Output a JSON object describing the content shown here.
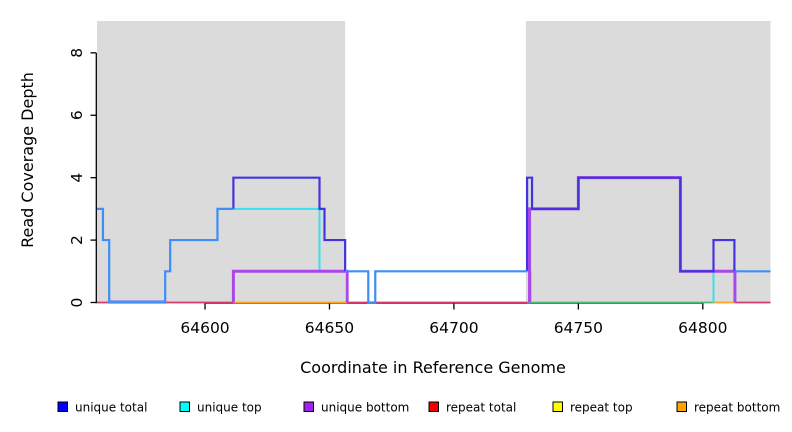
{
  "background": "#ffffff",
  "chart_data": {
    "type": "step-line",
    "title": "",
    "xlabel": "Coordinate in Reference Genome",
    "ylabel": "Read Coverage Depth",
    "xlim": [
      64556.6,
      64827.2
    ],
    "ylim": [
      0,
      9.02
    ],
    "xticks": [
      64600,
      64650,
      64700,
      64750,
      64800
    ],
    "yticks": [
      0,
      2,
      4,
      6,
      8
    ],
    "grid": false,
    "legend_position": "bottom",
    "shade_color": "#dbdbdb",
    "shaded_regions": [
      {
        "name": "left-covered-region",
        "from": 64556.6,
        "to": 64656.3
      },
      {
        "name": "right-covered-region",
        "from": 64728.9,
        "to": 64827.2
      }
    ],
    "baseline_y": 0,
    "baseline_segments": [
      {
        "from": 64556.6,
        "to": 64611.4,
        "color": "#d23b68",
        "dy": 0
      },
      {
        "from": 64561.5,
        "to": 64584.0,
        "color": "#8d8dec",
        "dy": -1.4
      },
      {
        "from": 64611.4,
        "to": 64657.1,
        "color": "#ffa424",
        "dy": 0
      },
      {
        "from": 64657.1,
        "to": 64729.4,
        "color": "#d23b68",
        "dy": 0
      },
      {
        "from": 64729.4,
        "to": 64804.3,
        "color": "#4cbb74",
        "dy": 0
      },
      {
        "from": 64804.3,
        "to": 64812.9,
        "color": "#ffa424",
        "dy": 0
      },
      {
        "from": 64812.9,
        "to": 64827.2,
        "color": "#d23b68",
        "dy": 0
      }
    ],
    "series": [
      {
        "name": "unique-top",
        "color": "#38e0ee",
        "width": 2,
        "segments": [
          [
            [
              64611.4,
              3
            ],
            [
              64646,
              3
            ],
            [
              64646,
              1
            ],
            [
              64657.1,
              1
            ]
          ],
          [
            [
              64730.8,
              1
            ],
            [
              64730.8,
              0
            ]
          ],
          [
            [
              64804.3,
              0
            ],
            [
              64804.3,
              1
            ],
            [
              64812.7,
              1
            ]
          ]
        ]
      },
      {
        "name": "unique-bottom",
        "color": "#ab47ea",
        "width": 3,
        "segments": [
          [
            [
              64611.4,
              0
            ],
            [
              64611.4,
              1
            ],
            [
              64657.1,
              1
            ],
            [
              64657.1,
              0
            ]
          ],
          [
            [
              64730.4,
              0
            ],
            [
              64730.4,
              3
            ],
            [
              64750,
              3
            ],
            [
              64750,
              4
            ],
            [
              64791,
              4
            ],
            [
              64791,
              1
            ],
            [
              64812.9,
              1
            ],
            [
              64812.9,
              0
            ]
          ]
        ]
      },
      {
        "name": "unique-total",
        "color": "#4334e0",
        "width": 2.2,
        "segments": [
          [
            [
              64611.4,
              3
            ],
            [
              64611.4,
              4
            ],
            [
              64646,
              4
            ],
            [
              64646,
              3
            ],
            [
              64648,
              3
            ],
            [
              64648,
              2
            ],
            [
              64656.3,
              2
            ],
            [
              64656.3,
              1
            ]
          ],
          [
            [
              64729.4,
              1
            ],
            [
              64729.4,
              4
            ],
            [
              64731.4,
              4
            ],
            [
              64731.4,
              3
            ],
            [
              64750,
              3
            ],
            [
              64750,
              4
            ],
            [
              64791,
              4
            ],
            [
              64791,
              1
            ],
            [
              64804.3,
              1
            ],
            [
              64804.3,
              2
            ],
            [
              64812.7,
              2
            ],
            [
              64812.7,
              1
            ]
          ]
        ]
      },
      {
        "name": "unique-total-overlap",
        "color": "#3e8ef7",
        "width": 2.2,
        "segments": [
          [
            [
              64556.6,
              3
            ],
            [
              64559,
              3
            ],
            [
              64559,
              2
            ],
            [
              64561.5,
              2
            ],
            [
              64561.5,
              0
            ],
            [
              64584,
              0
            ],
            [
              64584,
              1
            ],
            [
              64586,
              1
            ],
            [
              64586,
              2
            ],
            [
              64605,
              2
            ],
            [
              64605,
              3
            ],
            [
              64611.4,
              3
            ]
          ],
          [
            [
              64656.3,
              1
            ],
            [
              64665.6,
              1
            ],
            [
              64665.6,
              0
            ],
            [
              64668.4,
              0
            ],
            [
              64668.4,
              1
            ],
            [
              64729.4,
              1
            ]
          ],
          [
            [
              64812.7,
              1
            ],
            [
              64827.2,
              1
            ]
          ]
        ]
      }
    ],
    "legend": [
      {
        "label": "unique total",
        "color": "#0000ff"
      },
      {
        "label": "unique top",
        "color": "#00ffff"
      },
      {
        "label": "unique bottom",
        "color": "#a020f0"
      },
      {
        "label": "repeat total",
        "color": "#ee0000"
      },
      {
        "label": "repeat top",
        "color": "#ffff00"
      },
      {
        "label": "repeat bottom",
        "color": "#ffa500"
      }
    ]
  }
}
